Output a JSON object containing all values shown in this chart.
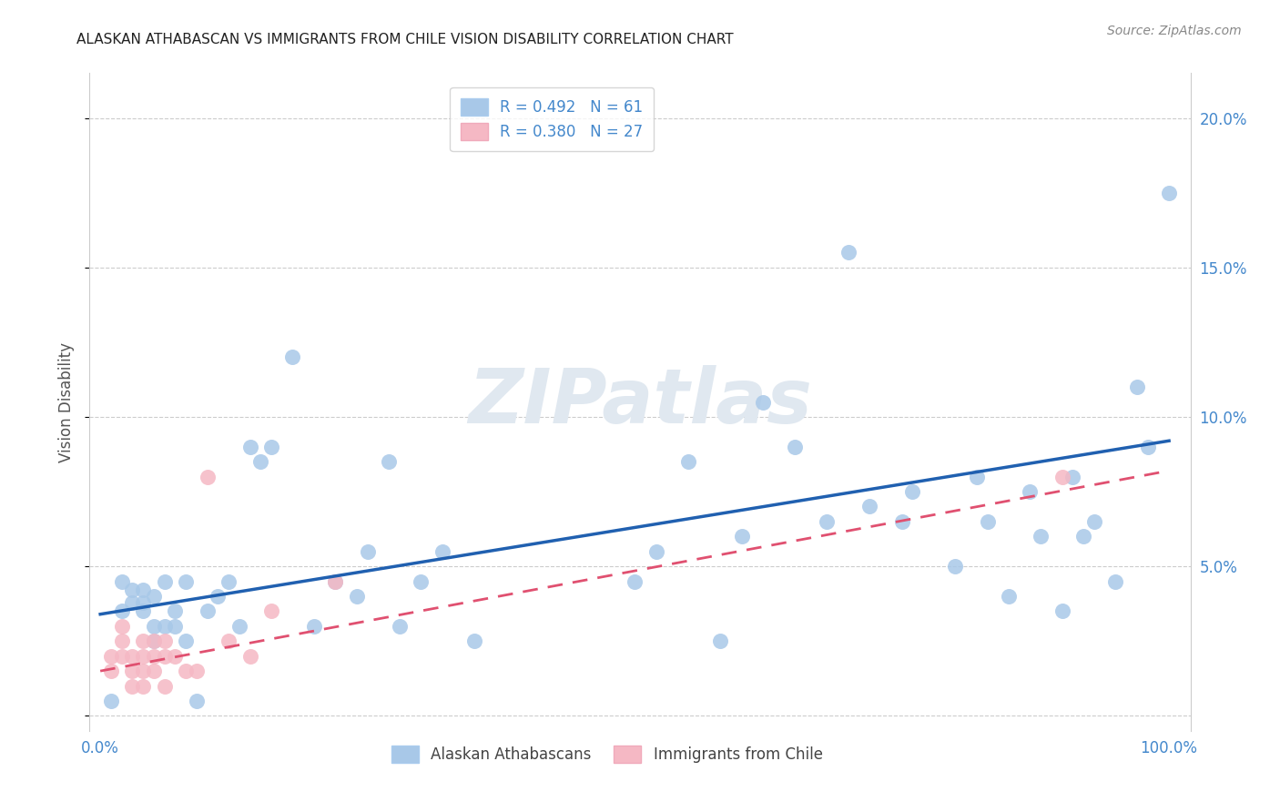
{
  "title": "ALASKAN ATHABASCAN VS IMMIGRANTS FROM CHILE VISION DISABILITY CORRELATION CHART",
  "source": "Source: ZipAtlas.com",
  "ylabel": "Vision Disability",
  "xlim": [
    -0.01,
    1.02
  ],
  "ylim": [
    -0.005,
    0.215
  ],
  "ytick_vals": [
    0.0,
    0.05,
    0.1,
    0.15,
    0.2
  ],
  "ytick_labels": [
    "",
    "5.0%",
    "10.0%",
    "15.0%",
    "20.0%"
  ],
  "xtick_vals": [
    0.0,
    0.2,
    0.4,
    0.6,
    0.8,
    1.0
  ],
  "xtick_labels": [
    "0.0%",
    "",
    "",
    "",
    "",
    "100.0%"
  ],
  "blue_color": "#a8c8e8",
  "pink_color": "#f5b8c4",
  "blue_line_color": "#2060b0",
  "pink_line_color": "#e05070",
  "tick_label_color": "#4488cc",
  "blue_scatter_x": [
    0.01,
    0.02,
    0.02,
    0.03,
    0.03,
    0.04,
    0.04,
    0.04,
    0.05,
    0.05,
    0.05,
    0.06,
    0.06,
    0.07,
    0.07,
    0.08,
    0.08,
    0.09,
    0.1,
    0.11,
    0.12,
    0.13,
    0.14,
    0.15,
    0.16,
    0.18,
    0.2,
    0.22,
    0.24,
    0.25,
    0.27,
    0.28,
    0.3,
    0.32,
    0.35,
    0.5,
    0.52,
    0.55,
    0.58,
    0.6,
    0.62,
    0.65,
    0.68,
    0.7,
    0.72,
    0.75,
    0.76,
    0.8,
    0.82,
    0.83,
    0.85,
    0.87,
    0.88,
    0.9,
    0.91,
    0.92,
    0.93,
    0.95,
    0.97,
    0.98,
    1.0
  ],
  "blue_scatter_y": [
    0.005,
    0.035,
    0.045,
    0.038,
    0.042,
    0.035,
    0.038,
    0.042,
    0.04,
    0.03,
    0.025,
    0.045,
    0.03,
    0.03,
    0.035,
    0.025,
    0.045,
    0.005,
    0.035,
    0.04,
    0.045,
    0.03,
    0.09,
    0.085,
    0.09,
    0.12,
    0.03,
    0.045,
    0.04,
    0.055,
    0.085,
    0.03,
    0.045,
    0.055,
    0.025,
    0.045,
    0.055,
    0.085,
    0.025,
    0.06,
    0.105,
    0.09,
    0.065,
    0.155,
    0.07,
    0.065,
    0.075,
    0.05,
    0.08,
    0.065,
    0.04,
    0.075,
    0.06,
    0.035,
    0.08,
    0.06,
    0.065,
    0.045,
    0.11,
    0.09,
    0.175
  ],
  "pink_scatter_x": [
    0.01,
    0.01,
    0.02,
    0.02,
    0.02,
    0.03,
    0.03,
    0.03,
    0.04,
    0.04,
    0.04,
    0.04,
    0.05,
    0.05,
    0.05,
    0.06,
    0.06,
    0.06,
    0.07,
    0.08,
    0.09,
    0.1,
    0.12,
    0.14,
    0.16,
    0.22,
    0.9
  ],
  "pink_scatter_y": [
    0.015,
    0.02,
    0.02,
    0.025,
    0.03,
    0.01,
    0.015,
    0.02,
    0.01,
    0.015,
    0.02,
    0.025,
    0.015,
    0.02,
    0.025,
    0.01,
    0.02,
    0.025,
    0.02,
    0.015,
    0.015,
    0.08,
    0.025,
    0.02,
    0.035,
    0.045,
    0.08
  ],
  "blue_line_x": [
    0.0,
    1.0
  ],
  "blue_line_y": [
    0.034,
    0.092
  ],
  "pink_line_x": [
    0.0,
    1.0
  ],
  "pink_line_y": [
    0.015,
    0.082
  ],
  "background_color": "#ffffff",
  "grid_color": "#cccccc",
  "watermark_text": "ZIPatlas",
  "watermark_color": "#e0e8f0",
  "legend_blue_label": "R = 0.492   N = 61",
  "legend_pink_label": "R = 0.380   N = 27",
  "bottom_legend_labels": [
    "Alaskan Athabascans",
    "Immigrants from Chile"
  ]
}
